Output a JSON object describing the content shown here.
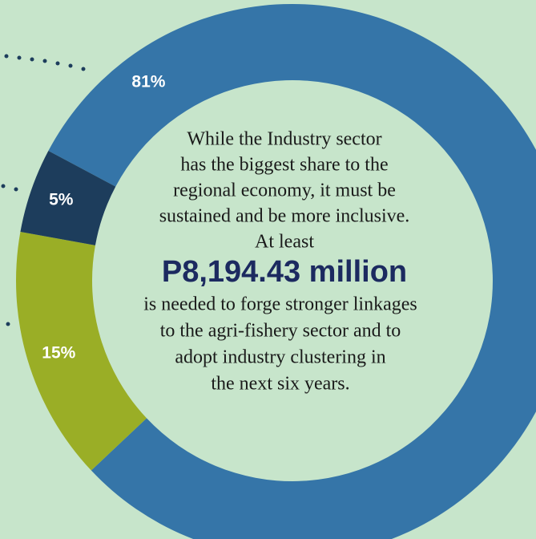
{
  "chart_data": {
    "type": "pie",
    "donut": true,
    "values": [
      81,
      15,
      5
    ],
    "value_labels": [
      "81%",
      "15%",
      "5%"
    ],
    "colors": [
      "#3575a8",
      "#9aae26",
      "#1d3d5c"
    ],
    "background": "#c7e5cb",
    "annotation": {
      "lines_before": [
        "While the Industry sector",
        "has the biggest share to the",
        "regional economy, it must be",
        "sustained and be more inclusive.",
        "At least"
      ],
      "highlight": "P8,194.43 million",
      "lines_after": [
        "is needed to forge stronger linkages",
        "to the agri-fishery sector and to",
        "adopt industry clustering in",
        "the next six years."
      ]
    }
  }
}
